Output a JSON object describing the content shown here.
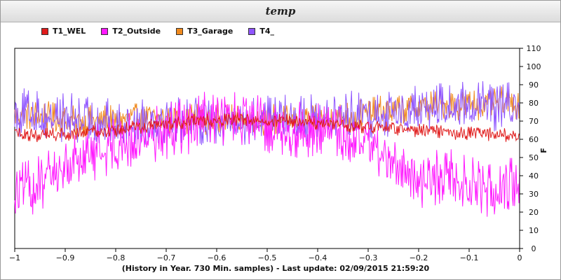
{
  "window": {
    "title": "temp"
  },
  "chart_data": {
    "type": "line",
    "title": "temp",
    "xlabel": "(History in Year. 730 Min. samples) - Last update: 02/09/2015 21:59:20",
    "ylabel": "F",
    "xlim": [
      -1,
      0
    ],
    "ylim": [
      0,
      110
    ],
    "xticks": [
      -1,
      -0.9,
      -0.8,
      -0.7,
      -0.6,
      -0.5,
      -0.4,
      -0.3,
      -0.2,
      -0.1,
      0
    ],
    "xtick_labels": [
      "−1",
      "−0.9",
      "−0.8",
      "−0.7",
      "−0.6",
      "−0.5",
      "−0.4",
      "−0.3",
      "−0.2",
      "−0.1",
      "0"
    ],
    "yticks": [
      0,
      10,
      20,
      30,
      40,
      50,
      60,
      70,
      80,
      90,
      100,
      110
    ],
    "ytick_labels": [
      "0",
      "10",
      "20",
      "30",
      "40",
      "50",
      "60",
      "70",
      "80",
      "90",
      "100",
      "110"
    ],
    "grid": false,
    "legend_position": "top-left",
    "draw_order": [
      "T3_Garage",
      "T4_",
      "T2_Outside",
      "T1_WEL"
    ],
    "series": [
      {
        "name": "T1_WEL",
        "color": "#e01b1b",
        "x": [
          -1,
          -0.95,
          -0.9,
          -0.85,
          -0.8,
          -0.75,
          -0.7,
          -0.65,
          -0.6,
          -0.55,
          -0.5,
          -0.45,
          -0.4,
          -0.35,
          -0.3,
          -0.25,
          -0.2,
          -0.15,
          -0.1,
          -0.05,
          0
        ],
        "values": [
          64,
          62,
          63,
          64,
          65,
          67,
          68,
          70,
          71,
          71,
          71,
          70,
          69,
          68,
          67,
          66,
          65,
          64,
          63,
          63,
          62
        ],
        "noise": 4
      },
      {
        "name": "T2_Outside",
        "color": "#ff19ff",
        "x": [
          -1,
          -0.95,
          -0.9,
          -0.85,
          -0.8,
          -0.75,
          -0.7,
          -0.65,
          -0.6,
          -0.55,
          -0.5,
          -0.45,
          -0.4,
          -0.35,
          -0.3,
          -0.25,
          -0.2,
          -0.15,
          -0.1,
          -0.05,
          0
        ],
        "values": [
          30,
          35,
          45,
          52,
          58,
          60,
          65,
          68,
          72,
          70,
          68,
          65,
          66,
          63,
          58,
          45,
          38,
          40,
          35,
          32,
          38
        ],
        "noise": 16
      },
      {
        "name": "T3_Garage",
        "color": "#f08a1e",
        "x": [
          -1,
          -0.95,
          -0.9,
          -0.85,
          -0.8,
          -0.75,
          -0.7,
          -0.65,
          -0.6,
          -0.55,
          -0.5,
          -0.45,
          -0.4,
          -0.35,
          -0.3,
          -0.25,
          -0.2,
          -0.15,
          -0.1,
          -0.05,
          0
        ],
        "values": [
          74,
          73,
          70,
          70,
          71,
          72,
          71,
          72,
          71,
          70,
          71,
          70,
          70,
          72,
          74,
          76,
          78,
          79,
          79,
          80,
          80
        ],
        "noise": 9
      },
      {
        "name": "T4_",
        "color": "#8f55ff",
        "x": [
          -1,
          -0.95,
          -0.9,
          -0.85,
          -0.8,
          -0.75,
          -0.7,
          -0.65,
          -0.6,
          -0.55,
          -0.5,
          -0.45,
          -0.4,
          -0.35,
          -0.3,
          -0.25,
          -0.2,
          -0.15,
          -0.1,
          -0.05,
          0
        ],
        "values": [
          75,
          73,
          72,
          70,
          68,
          70,
          72,
          71,
          70,
          69,
          70,
          71,
          72,
          73,
          74,
          75,
          76,
          77,
          78,
          78,
          77
        ],
        "noise": 14
      }
    ]
  }
}
